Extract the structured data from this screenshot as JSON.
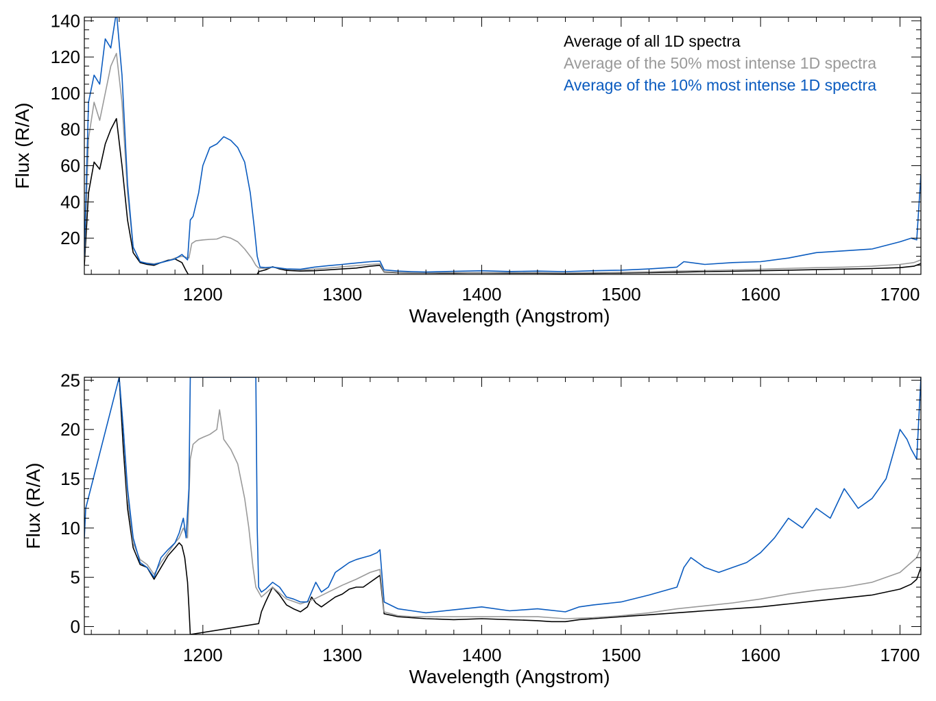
{
  "chart_data": [
    {
      "type": "line",
      "xlabel": "Wavelength (Angstrom)",
      "ylabel": "Flux (R/A)",
      "xlim": [
        1115,
        1715
      ],
      "ylim": [
        0,
        142
      ],
      "xticks": [
        1200,
        1300,
        1400,
        1500,
        1600,
        1700
      ],
      "yticks": [
        20,
        40,
        60,
        80,
        100,
        120,
        140
      ],
      "legend": {
        "position": "top-right",
        "entries": [
          {
            "label": "Average of all 1D spectra",
            "color": "#000000"
          },
          {
            "label": "Average of the 50% most intense 1D spectra",
            "color": "#999999"
          },
          {
            "label": "Average of the 10% most intense 1D spectra",
            "color": "#0a5bbf"
          }
        ]
      },
      "series": [
        {
          "name": "Average of all 1D spectra",
          "color": "#000000",
          "x": [
            1115,
            1118,
            1122,
            1126,
            1130,
            1134,
            1138,
            1142,
            1146,
            1150,
            1155,
            1160,
            1165,
            1170,
            1175,
            1180,
            1185,
            1188,
            1189.5,
            1191,
            1195,
            1200,
            1210,
            1220,
            1230,
            1239,
            1240,
            1245,
            1250,
            1255,
            1260,
            1270,
            1280,
            1290,
            1300,
            1310,
            1320,
            1327,
            1330,
            1340,
            1350,
            1360,
            1370,
            1380,
            1390,
            1400,
            1420,
            1440,
            1460,
            1480,
            1500,
            1520,
            1540,
            1560,
            1580,
            1600,
            1620,
            1640,
            1660,
            1680,
            1700,
            1710,
            1715
          ],
          "y": [
            5,
            45,
            62,
            58,
            72,
            80,
            86,
            60,
            30,
            12,
            6.5,
            5.5,
            5,
            6.5,
            7.8,
            8.5,
            6.5,
            2,
            0,
            0,
            0,
            0,
            0,
            0,
            0,
            0,
            1.5,
            2.5,
            4.2,
            3,
            2.2,
            1.8,
            2,
            2.5,
            3,
            3.5,
            4.5,
            5,
            1.3,
            0.9,
            0.8,
            0.8,
            0.7,
            0.7,
            0.8,
            0.8,
            0.7,
            0.7,
            0.5,
            0.6,
            0.8,
            1,
            1.2,
            1.5,
            1.7,
            2,
            2.3,
            2.6,
            2.9,
            3.2,
            3.7,
            4.5,
            6
          ]
        },
        {
          "name": "Average of the 50% most intense 1D spectra",
          "color": "#999999",
          "x": [
            1115,
            1118,
            1122,
            1126,
            1130,
            1134,
            1138,
            1142,
            1146,
            1150,
            1155,
            1160,
            1165,
            1170,
            1175,
            1180,
            1185,
            1190,
            1192,
            1195,
            1200,
            1205,
            1210,
            1215,
            1220,
            1225,
            1230,
            1235,
            1238,
            1240,
            1245,
            1250,
            1260,
            1270,
            1280,
            1290,
            1300,
            1310,
            1320,
            1327,
            1330,
            1340,
            1350,
            1360,
            1380,
            1400,
            1420,
            1440,
            1460,
            1480,
            1500,
            1520,
            1540,
            1560,
            1580,
            1600,
            1620,
            1640,
            1660,
            1680,
            1700,
            1710,
            1715
          ],
          "y": [
            8,
            75,
            95,
            85,
            100,
            115,
            122,
            95,
            45,
            15,
            7,
            6.2,
            5.8,
            6.5,
            7.5,
            9,
            10,
            9,
            17,
            18.5,
            19,
            19.3,
            19.5,
            21,
            20,
            18,
            14,
            9,
            5,
            3.5,
            3.2,
            4,
            2.8,
            2.4,
            2.9,
            3.5,
            4.2,
            4.8,
            5.5,
            5.8,
            1.5,
            1.1,
            1,
            1,
            1,
            1,
            1,
            1,
            0.8,
            0.9,
            1.1,
            1.4,
            1.8,
            2.1,
            2.4,
            2.8,
            3.3,
            3.7,
            4,
            4.5,
            5.5,
            6.5,
            8
          ]
        },
        {
          "name": "Average of the 10% most intense 1D spectra",
          "color": "#0a5bbf",
          "x": [
            1115,
            1118,
            1122,
            1126,
            1130,
            1134,
            1138,
            1142,
            1146,
            1150,
            1155,
            1160,
            1165,
            1170,
            1175,
            1180,
            1185,
            1189,
            1191,
            1193,
            1197,
            1200,
            1205,
            1210,
            1215,
            1220,
            1225,
            1230,
            1234,
            1237,
            1239,
            1241,
            1245,
            1250,
            1260,
            1270,
            1280,
            1290,
            1300,
            1310,
            1320,
            1327,
            1330,
            1340,
            1350,
            1360,
            1380,
            1400,
            1420,
            1440,
            1460,
            1480,
            1500,
            1520,
            1540,
            1545,
            1560,
            1580,
            1600,
            1620,
            1640,
            1660,
            1680,
            1700,
            1708,
            1712,
            1715
          ],
          "y": [
            10,
            95,
            110,
            105,
            130,
            125,
            145,
            110,
            50,
            15,
            7,
            6,
            5.5,
            6.5,
            7.5,
            8.5,
            11,
            8,
            30,
            32,
            45,
            60,
            70,
            72,
            76,
            74,
            70,
            62,
            45,
            25,
            10,
            4,
            3.8,
            4,
            3,
            2.8,
            4,
            4.8,
            5.5,
            6.3,
            7,
            7.3,
            2.5,
            1.8,
            1.5,
            1.3,
            1.7,
            2,
            1.6,
            1.8,
            1.5,
            2,
            2.3,
            3,
            4,
            7,
            5.5,
            6.5,
            7,
            9,
            12,
            13,
            14,
            18,
            20,
            19,
            55
          ]
        }
      ]
    },
    {
      "type": "line",
      "xlabel": "Wavelength (Angstrom)",
      "ylabel": "Flux (R/A)",
      "xlim": [
        1115,
        1715
      ],
      "ylim": [
        -0.8,
        25.3
      ],
      "xticks": [
        1200,
        1300,
        1400,
        1500,
        1600,
        1700
      ],
      "yticks": [
        0,
        5,
        10,
        15,
        20,
        25
      ],
      "series": [
        {
          "name": "Average of all 1D spectra",
          "color": "#000000",
          "x": [
            1140,
            1143,
            1146,
            1150,
            1155,
            1160,
            1165,
            1170,
            1175,
            1180,
            1183,
            1185,
            1187,
            1189,
            1190,
            1191,
            1240,
            1242,
            1245,
            1250,
            1255,
            1260,
            1265,
            1270,
            1275,
            1278,
            1281,
            1285,
            1290,
            1295,
            1300,
            1305,
            1310,
            1315,
            1320,
            1325,
            1327,
            1330,
            1340,
            1350,
            1360,
            1380,
            1400,
            1420,
            1440,
            1450,
            1460,
            1470,
            1480,
            1500,
            1520,
            1540,
            1560,
            1580,
            1600,
            1620,
            1640,
            1660,
            1680,
            1700,
            1708,
            1712,
            1715
          ],
          "y": [
            25.3,
            18,
            12,
            8,
            6.3,
            6,
            4.8,
            6,
            7.2,
            8,
            8.5,
            8.2,
            7,
            4.5,
            2,
            -0.8,
            0.3,
            1.5,
            2.5,
            4,
            3.2,
            2.2,
            1.8,
            1.5,
            2,
            3,
            2.4,
            2,
            2.5,
            3,
            3.3,
            3.8,
            4,
            4,
            4.5,
            5,
            5.2,
            1.3,
            1,
            0.9,
            0.8,
            0.7,
            0.8,
            0.7,
            0.6,
            0.5,
            0.5,
            0.7,
            0.8,
            1,
            1.2,
            1.4,
            1.6,
            1.8,
            2,
            2.3,
            2.6,
            2.9,
            3.2,
            3.8,
            4.3,
            4.8,
            6
          ]
        },
        {
          "name": "Average of the 50% most intense 1D spectra",
          "color": "#999999",
          "x": [
            1140,
            1143,
            1146,
            1150,
            1155,
            1160,
            1165,
            1170,
            1175,
            1180,
            1183,
            1186,
            1189,
            1191,
            1193,
            1197,
            1200,
            1205,
            1210,
            1212,
            1215,
            1220,
            1225,
            1230,
            1233,
            1236,
            1238,
            1240,
            1242,
            1246,
            1250,
            1260,
            1270,
            1280,
            1290,
            1300,
            1310,
            1320,
            1327,
            1330,
            1340,
            1350,
            1360,
            1380,
            1400,
            1420,
            1440,
            1460,
            1480,
            1500,
            1520,
            1540,
            1560,
            1580,
            1600,
            1620,
            1640,
            1660,
            1680,
            1700,
            1708,
            1712,
            1715
          ],
          "y": [
            25.3,
            20,
            13,
            8.5,
            6.8,
            6.3,
            5.3,
            6.5,
            7.5,
            8.5,
            9,
            10,
            9,
            17,
            18.5,
            19,
            19.2,
            19.5,
            20,
            22,
            19,
            18,
            16.5,
            13,
            10,
            6,
            4,
            3.5,
            3,
            3.5,
            4,
            2.8,
            2.3,
            2.8,
            3.5,
            4.2,
            4.8,
            5.5,
            5.8,
            1.5,
            1.1,
            1,
            1,
            1,
            1,
            1,
            1,
            0.8,
            0.9,
            1.1,
            1.4,
            1.8,
            2.1,
            2.4,
            2.8,
            3.3,
            3.7,
            4,
            4.5,
            5.5,
            6.5,
            7,
            8
          ]
        },
        {
          "name": "Average of the 10% most intense 1D spectra",
          "color": "#0a5bbf",
          "x": [
            1115,
            1116,
            1140,
            1143,
            1146,
            1150,
            1155,
            1160,
            1165,
            1170,
            1175,
            1180,
            1183,
            1186,
            1188,
            1190,
            1191,
            1238,
            1239,
            1240,
            1242,
            1245,
            1250,
            1255,
            1260,
            1265,
            1270,
            1275,
            1278,
            1281,
            1285,
            1290,
            1295,
            1300,
            1305,
            1310,
            1315,
            1320,
            1325,
            1327,
            1330,
            1340,
            1350,
            1360,
            1380,
            1400,
            1420,
            1440,
            1460,
            1470,
            1480,
            1500,
            1520,
            1540,
            1545,
            1550,
            1560,
            1570,
            1580,
            1590,
            1600,
            1610,
            1620,
            1630,
            1640,
            1650,
            1660,
            1670,
            1680,
            1690,
            1700,
            1705,
            1708,
            1712,
            1715
          ],
          "y": [
            9,
            12,
            25.3,
            20,
            14,
            9,
            6.5,
            6,
            5,
            7,
            7.8,
            8.5,
            9.5,
            11,
            9,
            14,
            25.3,
            25.3,
            10,
            4,
            3.5,
            3.8,
            4.5,
            4,
            3,
            2.8,
            2.5,
            2.5,
            3.5,
            4.5,
            3.5,
            4,
            5.5,
            6,
            6.5,
            6.8,
            7,
            7.2,
            7.5,
            7.8,
            2.5,
            1.8,
            1.6,
            1.4,
            1.7,
            2,
            1.6,
            1.8,
            1.5,
            2,
            2.2,
            2.5,
            3.2,
            4,
            6,
            7,
            6,
            5.5,
            6,
            6.5,
            7.5,
            9,
            11,
            10,
            12,
            11,
            14,
            12,
            13,
            15,
            20,
            19,
            18,
            17,
            25.3
          ]
        }
      ]
    }
  ]
}
